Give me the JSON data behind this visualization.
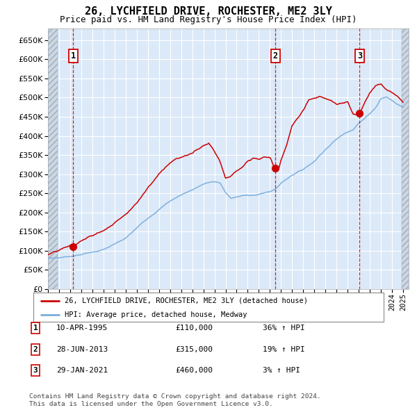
{
  "title": "26, LYCHFIELD DRIVE, ROCHESTER, ME2 3LY",
  "subtitle": "Price paid vs. HM Land Registry's House Price Index (HPI)",
  "ylim": [
    0,
    680000
  ],
  "yticks": [
    0,
    50000,
    100000,
    150000,
    200000,
    250000,
    300000,
    350000,
    400000,
    450000,
    500000,
    550000,
    600000,
    650000
  ],
  "xlim_start": 1993.0,
  "xlim_end": 2025.5,
  "background_color": "#dce9f8",
  "grid_color": "#ffffff",
  "hatch_color": "#c8d8ea",
  "sale_dates": [
    1995.27,
    2013.49,
    2021.08
  ],
  "sale_prices": [
    110000,
    315000,
    460000
  ],
  "sale_labels": [
    "1",
    "2",
    "3"
  ],
  "legend_line1": "26, LYCHFIELD DRIVE, ROCHESTER, ME2 3LY (detached house)",
  "legend_line2": "HPI: Average price, detached house, Medway",
  "transaction_rows": [
    [
      "1",
      "10-APR-1995",
      "£110,000",
      "36% ↑ HPI"
    ],
    [
      "2",
      "28-JUN-2013",
      "£315,000",
      "19% ↑ HPI"
    ],
    [
      "3",
      "29-JAN-2021",
      "£460,000",
      "3% ↑ HPI"
    ]
  ],
  "footnote": "Contains HM Land Registry data © Crown copyright and database right 2024.\nThis data is licensed under the Open Government Licence v3.0.",
  "red_line_color": "#cc0000",
  "blue_line_color": "#7aaddc",
  "dot_color": "#cc0000",
  "dashed_line_color": "#cc0000",
  "title_fontsize": 11,
  "subtitle_fontsize": 9
}
